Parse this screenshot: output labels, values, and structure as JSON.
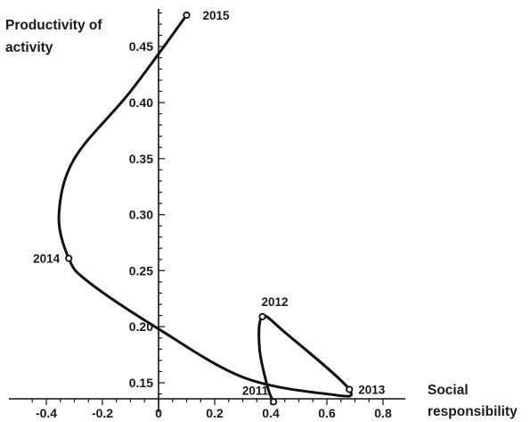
{
  "chart_data": {
    "type": "line",
    "title": "",
    "xlabel": [
      "Social",
      "responsibility"
    ],
    "ylabel": [
      "Productivity of",
      "activity"
    ],
    "xlim": [
      -0.45,
      0.83
    ],
    "ylim": [
      0.13,
      0.48
    ],
    "x_ticks": [
      {
        "value": -0.4,
        "label": "-0.4"
      },
      {
        "value": -0.2,
        "label": "-0.2"
      },
      {
        "value": 0,
        "label": "0"
      },
      {
        "value": 0.2,
        "label": "0.2"
      },
      {
        "value": 0.4,
        "label": "0.4"
      },
      {
        "value": 0.6,
        "label": "0.6"
      },
      {
        "value": 0.8,
        "label": "0.8"
      }
    ],
    "y_ticks": [
      {
        "value": 0.15,
        "label": "0.15"
      },
      {
        "value": 0.2,
        "label": "0.20"
      },
      {
        "value": 0.25,
        "label": "0.25"
      },
      {
        "value": 0.3,
        "label": "0.30"
      },
      {
        "value": 0.35,
        "label": "0.35"
      },
      {
        "value": 0.4,
        "label": "0.40"
      },
      {
        "value": 0.45,
        "label": "0.45"
      }
    ],
    "points": [
      {
        "year": "2011",
        "x": 0.41,
        "y": 0.133
      },
      {
        "year": "2012",
        "x": 0.37,
        "y": 0.209
      },
      {
        "year": "2013",
        "x": 0.68,
        "y": 0.144
      },
      {
        "year": "2014",
        "x": -0.32,
        "y": 0.261
      },
      {
        "year": "2015",
        "x": 0.1,
        "y": 0.478
      }
    ],
    "curve": [
      [
        0.41,
        0.133
      ],
      [
        0.39,
        0.145
      ],
      [
        0.36,
        0.18
      ],
      [
        0.37,
        0.209
      ],
      [
        0.45,
        0.195
      ],
      [
        0.68,
        0.144
      ],
      [
        0.6,
        0.14
      ],
      [
        0.3,
        0.155
      ],
      [
        0.0,
        0.198
      ],
      [
        -0.25,
        0.24
      ],
      [
        -0.32,
        0.261
      ],
      [
        -0.355,
        0.3
      ],
      [
        -0.3,
        0.35
      ],
      [
        -0.1,
        0.41
      ],
      [
        0.1,
        0.478
      ]
    ],
    "grid": false,
    "legend": "none"
  }
}
